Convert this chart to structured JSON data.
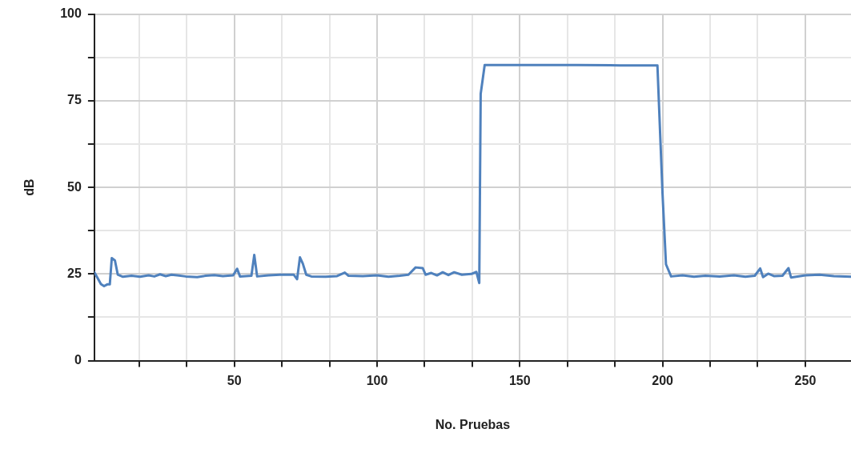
{
  "chart_data": {
    "type": "line",
    "xlabel": "No. Pruebas",
    "ylabel": "dB",
    "x": [
      1,
      3.3,
      4.4,
      5.5,
      6.4,
      7.1,
      8.2,
      9.2,
      11,
      14,
      17,
      20,
      22,
      24,
      26,
      28,
      30,
      33,
      37,
      40,
      43,
      46,
      49.6,
      51,
      52,
      56,
      57,
      58,
      62,
      66,
      70.8,
      72,
      73,
      74,
      75.2,
      77,
      82,
      86,
      88.7,
      90,
      95,
      100,
      104,
      108,
      111,
      113.5,
      116,
      117,
      119,
      121,
      123,
      125,
      127,
      129.7,
      133,
      134.8,
      135.8,
      136.3,
      137.7,
      150,
      170,
      185,
      198.2,
      200,
      201.2,
      203,
      207,
      211,
      215,
      220,
      225,
      229,
      232.3,
      234.2,
      235.2,
      237,
      239,
      242,
      244.1,
      245,
      250,
      255,
      260,
      266
    ],
    "series": [
      {
        "color": "#4f81bd",
        "values": [
          25.5,
          22.1,
          21.5,
          22,
          22,
          29.6,
          28.9,
          24.8,
          24.2,
          24.5,
          24.2,
          24.6,
          24.3,
          24.9,
          24.4,
          24.8,
          24.6,
          24.3,
          24.1,
          24.5,
          24.7,
          24.4,
          24.6,
          26.5,
          24.3,
          24.5,
          30.5,
          24.3,
          24.6,
          24.8,
          24.8,
          23.5,
          29.8,
          28,
          24.8,
          24.3,
          24.2,
          24.4,
          25.4,
          24.5,
          24.4,
          24.6,
          24.2,
          24.5,
          24.8,
          26.9,
          26.7,
          24.8,
          25.3,
          24.6,
          25.5,
          24.7,
          25.5,
          24.8,
          25,
          25.6,
          22.4,
          77,
          85.3,
          85.3,
          85.3,
          85.2,
          85.2,
          48,
          27.8,
          24.3,
          24.6,
          24.2,
          24.5,
          24.3,
          24.6,
          24.2,
          24.5,
          26.6,
          24.1,
          25.1,
          24.4,
          24.5,
          26.7,
          24,
          24.6,
          24.8,
          24.4,
          24.2
        ]
      }
    ],
    "xlim": [
      1,
      266
    ],
    "xticks": [
      {
        "value": 16.67,
        "label": null
      },
      {
        "value": 33.33,
        "label": null
      },
      50,
      {
        "value": 66.67,
        "label": null
      },
      {
        "value": 83.33,
        "label": null
      },
      100,
      {
        "value": 116.67,
        "label": null
      },
      {
        "value": 133.33,
        "label": null
      },
      150,
      {
        "value": 166.67,
        "label": null
      },
      {
        "value": 183.33,
        "label": null
      },
      200,
      {
        "value": 216.67,
        "label": null
      },
      {
        "value": 233.33,
        "label": null
      },
      250
    ],
    "ylim": [
      0,
      100
    ],
    "yticks": [
      0,
      {
        "value": 12.5,
        "label": null
      },
      25,
      {
        "value": 37.5,
        "label": null
      },
      50,
      {
        "value": 62.5,
        "label": null
      },
      75,
      {
        "value": 87.5,
        "label": null
      },
      100
    ],
    "grid": true,
    "legend": false,
    "marker": "none",
    "line_style": "solid"
  }
}
